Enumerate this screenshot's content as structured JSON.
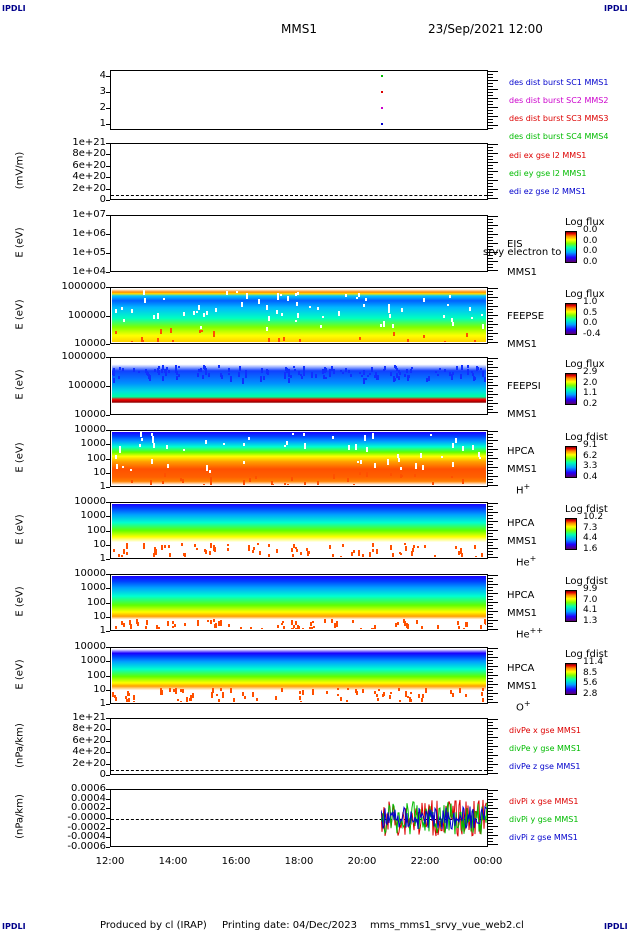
{
  "corner_labels": {
    "tl": "IPDLI",
    "tr": "IPDLI",
    "bl": "IPDLI",
    "br": "IPDLI"
  },
  "header": {
    "spacecraft": "MMS1",
    "datetime": "23/Sep/2021 12:00"
  },
  "footer": {
    "produced_by": "Produced by cl (IRAP)",
    "printing_date": "Printing date: 04/Dec/2023",
    "script": "mms_mms1_srvy_vue_web2.cl"
  },
  "x_axis": {
    "ticks": [
      "12:00",
      "14:00",
      "16:00",
      "18:00",
      "20:00",
      "22:00",
      "00:00"
    ]
  },
  "panels": [
    {
      "id": "p1",
      "ylabel": "",
      "ticks": [
        "4",
        "3",
        "2",
        "1"
      ],
      "legend": [
        {
          "text": "des dist burst SC1 MMS1",
          "color": "#0000cc"
        },
        {
          "text": "des dist burst SC2 MMS2",
          "color": "#cc00cc"
        },
        {
          "text": "des dist burst SC3 MMS3",
          "color": "#dd0000"
        },
        {
          "text": "des dist burst SC4 MMS4",
          "color": "#00bb00"
        }
      ]
    },
    {
      "id": "p2",
      "ylabel": "(mV/m)",
      "ticks": [
        "1e+21",
        "8e+20",
        "6e+20",
        "4e+20",
        "2e+20",
        "0"
      ],
      "legend": [
        {
          "text": "edi ex gse l2 MMS1",
          "color": "#dd0000"
        },
        {
          "text": "edi ey gse l2 MMS1",
          "color": "#00bb00"
        },
        {
          "text": "edi ez gse l2 MMS1",
          "color": "#0000cc"
        }
      ]
    },
    {
      "id": "p3",
      "ylabel": "E (eV)",
      "ticks": [
        "1e+07",
        "1e+06",
        "1e+05",
        "1e+04"
      ],
      "inst": [
        "EIS",
        "MMS1"
      ],
      "overlay": "srvy electron to",
      "cb": {
        "title": "Log flux",
        "values": [
          "0.0",
          "0.0",
          "0.0",
          "0.0"
        ]
      }
    },
    {
      "id": "p4",
      "ylabel": "E (eV)",
      "ticks": [
        "1000000",
        "100000",
        "10000"
      ],
      "inst": [
        "FEEPSE",
        "MMS1"
      ],
      "cb": {
        "title": "Log flux",
        "values": [
          "1.0",
          "0.5",
          "0.0",
          "-0.4"
        ]
      }
    },
    {
      "id": "p5",
      "ylabel": "E (eV)",
      "ticks": [
        "1000000",
        "100000",
        "10000"
      ],
      "inst": [
        "FEEPSI",
        "MMS1"
      ],
      "cb": {
        "title": "Log flux",
        "values": [
          "2.9",
          "2.0",
          "1.1",
          "0.2"
        ]
      }
    },
    {
      "id": "p6",
      "ylabel": "E (eV)",
      "ticks": [
        "10000",
        "1000",
        "100",
        "10",
        "1"
      ],
      "inst": [
        "HPCA",
        "MMS1"
      ],
      "species": "H",
      "species_sup": "+",
      "cb": {
        "title": "Log fdist",
        "values": [
          "9.1",
          "6.2",
          "3.3",
          "0.4"
        ]
      }
    },
    {
      "id": "p7",
      "ylabel": "E (eV)",
      "ticks": [
        "10000",
        "1000",
        "100",
        "10",
        "1"
      ],
      "inst": [
        "HPCA",
        "MMS1"
      ],
      "species": "He",
      "species_sup": "+",
      "cb": {
        "title": "Log fdist",
        "values": [
          "10.2",
          "7.3",
          "4.4",
          "1.6"
        ]
      }
    },
    {
      "id": "p8",
      "ylabel": "E (eV)",
      "ticks": [
        "10000",
        "1000",
        "100",
        "10",
        "1"
      ],
      "inst": [
        "HPCA",
        "MMS1"
      ],
      "species": "He",
      "species_sup": "++",
      "cb": {
        "title": "Log fdist",
        "values": [
          "9.9",
          "7.0",
          "4.1",
          "1.3"
        ]
      }
    },
    {
      "id": "p9",
      "ylabel": "E (eV)",
      "ticks": [
        "10000",
        "1000",
        "100",
        "10",
        "1"
      ],
      "inst": [
        "HPCA",
        "MMS1"
      ],
      "species": "O",
      "species_sup": "+",
      "cb": {
        "title": "Log fdist",
        "values": [
          "11.4",
          "8.5",
          "5.6",
          "2.8"
        ]
      }
    },
    {
      "id": "p10",
      "ylabel": "(nPa/km)",
      "ticks": [
        "1e+21",
        "8e+20",
        "6e+20",
        "4e+20",
        "2e+20",
        "0"
      ],
      "legend": [
        {
          "text": "divPe x gse MMS1",
          "color": "#dd0000"
        },
        {
          "text": "divPe y gse MMS1",
          "color": "#00bb00"
        },
        {
          "text": "divPe z gse MMS1",
          "color": "#0000cc"
        }
      ]
    },
    {
      "id": "p11",
      "ylabel": "(nPa/km)",
      "ticks": [
        "0.0006",
        "0.0004",
        "0.0002",
        "-0.0000",
        "-0.0002",
        "-0.0004",
        "-0.0006"
      ],
      "legend": [
        {
          "text": "divPi x gse MMS1",
          "color": "#dd0000"
        },
        {
          "text": "divPi y gse MMS1",
          "color": "#00bb00"
        },
        {
          "text": "divPi z gse MMS1",
          "color": "#0000cc"
        }
      ]
    }
  ],
  "chart_data": {
    "type": "heatmap",
    "x_range": [
      "12:00",
      "00:00"
    ],
    "burst_markers": {
      "x": "20:37",
      "sc": [
        1,
        2,
        3,
        4
      ]
    },
    "divPi_data_start": "20:37"
  }
}
